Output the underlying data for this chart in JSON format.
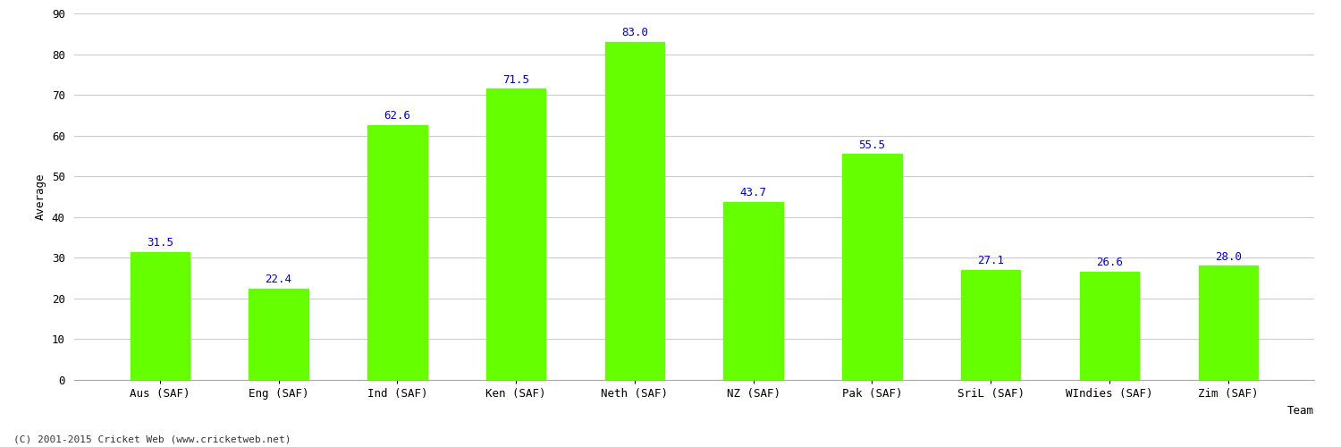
{
  "categories": [
    "Aus (SAF)",
    "Eng (SAF)",
    "Ind (SAF)",
    "Ken (SAF)",
    "Neth (SAF)",
    "NZ (SAF)",
    "Pak (SAF)",
    "SriL (SAF)",
    "WIndies (SAF)",
    "Zim (SAF)"
  ],
  "values": [
    31.5,
    22.4,
    62.6,
    71.5,
    83.0,
    43.7,
    55.5,
    27.1,
    26.6,
    28.0
  ],
  "bar_color": "#66ff00",
  "bar_edge_color": "#66ff00",
  "value_color": "#0000cc",
  "xlabel": "Team",
  "ylabel": "Average",
  "ylim": [
    0,
    90
  ],
  "yticks": [
    0,
    10,
    20,
    30,
    40,
    50,
    60,
    70,
    80,
    90
  ],
  "grid_color": "#cccccc",
  "background_color": "#ffffff",
  "footer": "(C) 2001-2015 Cricket Web (www.cricketweb.net)",
  "value_fontsize": 9,
  "axis_fontsize": 9,
  "footer_fontsize": 8,
  "bar_width": 0.5
}
